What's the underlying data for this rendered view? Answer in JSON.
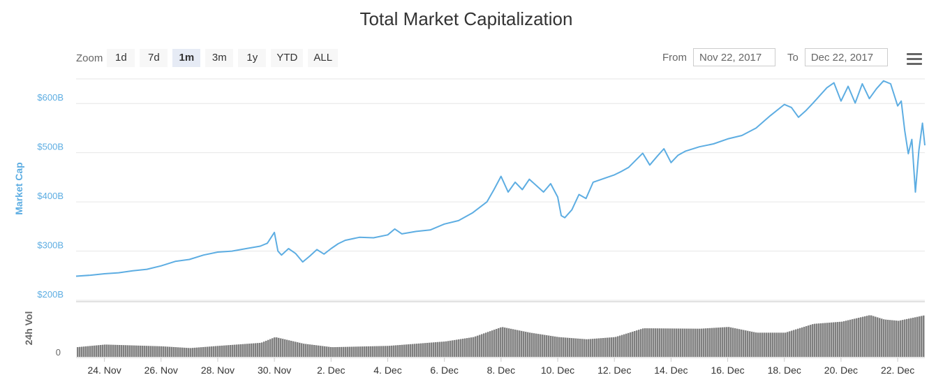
{
  "chart_data": {
    "type": "line",
    "title": "Total Market Capitalization",
    "ylabel": "Market Cap",
    "ylim": [
      200,
      650
    ],
    "y_unit": "$B",
    "y_ticks": [
      "$200B",
      "$300B",
      "$400B",
      "$500B",
      "$600B"
    ],
    "y_tick_values": [
      200,
      300,
      400,
      500,
      600
    ],
    "x_range": [
      "2017-11-23",
      "2017-12-22"
    ],
    "x_ticks": [
      "24. Nov",
      "26. Nov",
      "28. Nov",
      "30. Nov",
      "2. Dec",
      "4. Dec",
      "6. Dec",
      "8. Dec",
      "10. Dec",
      "12. Dec",
      "14. Dec",
      "16. Dec",
      "18. Dec",
      "20. Dec",
      "22. Dec"
    ],
    "x_tick_values": [
      "2017-11-24",
      "2017-11-26",
      "2017-11-28",
      "2017-11-30",
      "2017-12-02",
      "2017-12-04",
      "2017-12-06",
      "2017-12-08",
      "2017-12-10",
      "2017-12-12",
      "2017-12-14",
      "2017-12-16",
      "2017-12-18",
      "2017-12-20",
      "2017-12-22"
    ],
    "grid": true,
    "series": [
      {
        "name": "Market Cap",
        "color": "#5dade2",
        "points": [
          [
            "2017-11-23 00:00",
            249
          ],
          [
            "2017-11-23 12:00",
            251
          ],
          [
            "2017-11-24 00:00",
            254
          ],
          [
            "2017-11-24 12:00",
            256
          ],
          [
            "2017-11-25 00:00",
            260
          ],
          [
            "2017-11-25 12:00",
            263
          ],
          [
            "2017-11-26 00:00",
            270
          ],
          [
            "2017-11-26 12:00",
            279
          ],
          [
            "2017-11-27 00:00",
            283
          ],
          [
            "2017-11-27 12:00",
            292
          ],
          [
            "2017-11-28 00:00",
            298
          ],
          [
            "2017-11-28 12:00",
            300
          ],
          [
            "2017-11-29 00:00",
            305
          ],
          [
            "2017-11-29 12:00",
            310
          ],
          [
            "2017-11-29 18:00",
            316
          ],
          [
            "2017-11-30 00:00",
            338
          ],
          [
            "2017-11-30 03:00",
            300
          ],
          [
            "2017-11-30 06:00",
            292
          ],
          [
            "2017-11-30 12:00",
            305
          ],
          [
            "2017-11-30 18:00",
            295
          ],
          [
            "2017-12-01 00:00",
            278
          ],
          [
            "2017-12-01 06:00",
            290
          ],
          [
            "2017-12-01 12:00",
            303
          ],
          [
            "2017-12-01 18:00",
            294
          ],
          [
            "2017-12-02 00:00",
            305
          ],
          [
            "2017-12-02 06:00",
            315
          ],
          [
            "2017-12-02 12:00",
            322
          ],
          [
            "2017-12-03 00:00",
            328
          ],
          [
            "2017-12-03 12:00",
            327
          ],
          [
            "2017-12-04 00:00",
            333
          ],
          [
            "2017-12-04 06:00",
            345
          ],
          [
            "2017-12-04 12:00",
            335
          ],
          [
            "2017-12-05 00:00",
            340
          ],
          [
            "2017-12-05 12:00",
            343
          ],
          [
            "2017-12-06 00:00",
            355
          ],
          [
            "2017-12-06 12:00",
            362
          ],
          [
            "2017-12-07 00:00",
            378
          ],
          [
            "2017-12-07 12:00",
            400
          ],
          [
            "2017-12-07 18:00",
            425
          ],
          [
            "2017-12-08 00:00",
            452
          ],
          [
            "2017-12-08 06:00",
            420
          ],
          [
            "2017-12-08 12:00",
            440
          ],
          [
            "2017-12-08 18:00",
            425
          ],
          [
            "2017-12-09 00:00",
            446
          ],
          [
            "2017-12-09 12:00",
            420
          ],
          [
            "2017-12-09 18:00",
            437
          ],
          [
            "2017-12-10 00:00",
            410
          ],
          [
            "2017-12-10 03:00",
            372
          ],
          [
            "2017-12-10 06:00",
            368
          ],
          [
            "2017-12-10 12:00",
            384
          ],
          [
            "2017-12-10 18:00",
            415
          ],
          [
            "2017-12-11 00:00",
            407
          ],
          [
            "2017-12-11 06:00",
            440
          ],
          [
            "2017-12-11 12:00",
            445
          ],
          [
            "2017-12-12 00:00",
            455
          ],
          [
            "2017-12-12 06:00",
            462
          ],
          [
            "2017-12-12 12:00",
            470
          ],
          [
            "2017-12-13 00:00",
            499
          ],
          [
            "2017-12-13 06:00",
            475
          ],
          [
            "2017-12-13 12:00",
            492
          ],
          [
            "2017-12-13 18:00",
            508
          ],
          [
            "2017-12-14 00:00",
            480
          ],
          [
            "2017-12-14 06:00",
            495
          ],
          [
            "2017-12-14 12:00",
            503
          ],
          [
            "2017-12-15 00:00",
            512
          ],
          [
            "2017-12-15 12:00",
            518
          ],
          [
            "2017-12-16 00:00",
            528
          ],
          [
            "2017-12-16 12:00",
            535
          ],
          [
            "2017-12-17 00:00",
            550
          ],
          [
            "2017-12-17 12:00",
            575
          ],
          [
            "2017-12-18 00:00",
            598
          ],
          [
            "2017-12-18 06:00",
            592
          ],
          [
            "2017-12-18 12:00",
            572
          ],
          [
            "2017-12-18 18:00",
            585
          ],
          [
            "2017-12-19 00:00",
            600
          ],
          [
            "2017-12-19 12:00",
            632
          ],
          [
            "2017-12-19 18:00",
            642
          ],
          [
            "2017-12-20 00:00",
            605
          ],
          [
            "2017-12-20 06:00",
            635
          ],
          [
            "2017-12-20 12:00",
            601
          ],
          [
            "2017-12-20 18:00",
            640
          ],
          [
            "2017-12-21 00:00",
            610
          ],
          [
            "2017-12-21 06:00",
            630
          ],
          [
            "2017-12-21 12:00",
            646
          ],
          [
            "2017-12-21 18:00",
            640
          ],
          [
            "2017-12-22 00:00",
            595
          ],
          [
            "2017-12-22 03:00",
            605
          ],
          [
            "2017-12-22 06:00",
            545
          ],
          [
            "2017-12-22 09:00",
            498
          ],
          [
            "2017-12-22 12:00",
            527
          ],
          [
            "2017-12-22 15:00",
            420
          ],
          [
            "2017-12-22 18:00",
            505
          ],
          [
            "2017-12-22 21:00",
            560
          ],
          [
            "2017-12-22 23:00",
            515
          ]
        ]
      }
    ],
    "volume": {
      "ylabel": "24h Vol",
      "y_ticks": [
        "0"
      ],
      "color": "#7f7f7f",
      "relative_levels": [
        [
          "2017-11-23 00:00",
          0.22
        ],
        [
          "2017-11-24 00:00",
          0.28
        ],
        [
          "2017-11-26 00:00",
          0.24
        ],
        [
          "2017-11-27 00:00",
          0.2
        ],
        [
          "2017-11-28 00:00",
          0.25
        ],
        [
          "2017-11-29 12:00",
          0.32
        ],
        [
          "2017-11-30 00:00",
          0.45
        ],
        [
          "2017-12-01 00:00",
          0.3
        ],
        [
          "2017-12-02 00:00",
          0.22
        ],
        [
          "2017-12-04 00:00",
          0.25
        ],
        [
          "2017-12-06 00:00",
          0.35
        ],
        [
          "2017-12-07 00:00",
          0.45
        ],
        [
          "2017-12-08 00:00",
          0.68
        ],
        [
          "2017-12-09 00:00",
          0.55
        ],
        [
          "2017-12-10 00:00",
          0.45
        ],
        [
          "2017-12-11 00:00",
          0.4
        ],
        [
          "2017-12-12 00:00",
          0.45
        ],
        [
          "2017-12-13 00:00",
          0.65
        ],
        [
          "2017-12-15 00:00",
          0.64
        ],
        [
          "2017-12-16 00:00",
          0.68
        ],
        [
          "2017-12-17 00:00",
          0.55
        ],
        [
          "2017-12-18 00:00",
          0.55
        ],
        [
          "2017-12-19 00:00",
          0.75
        ],
        [
          "2017-12-20 00:00",
          0.8
        ],
        [
          "2017-12-21 00:00",
          0.95
        ],
        [
          "2017-12-21 12:00",
          0.85
        ],
        [
          "2017-12-22 00:00",
          0.82
        ],
        [
          "2017-12-22 23:00",
          0.95
        ]
      ]
    }
  },
  "toolbar": {
    "zoom_label": "Zoom",
    "zoom_buttons": [
      "1d",
      "7d",
      "1m",
      "3m",
      "1y",
      "YTD",
      "ALL"
    ],
    "active_zoom": "1m",
    "from_label": "From",
    "from_value": "Nov 22, 2017",
    "to_label": "To",
    "to_value": "Dec 22, 2017",
    "menu_icon": "hamburger-menu-icon"
  },
  "colors": {
    "line": "#5dade2",
    "axis_label": "#5dade2",
    "volume": "#7f7f7f",
    "grid": "#e6e6e6",
    "text": "#333333"
  }
}
